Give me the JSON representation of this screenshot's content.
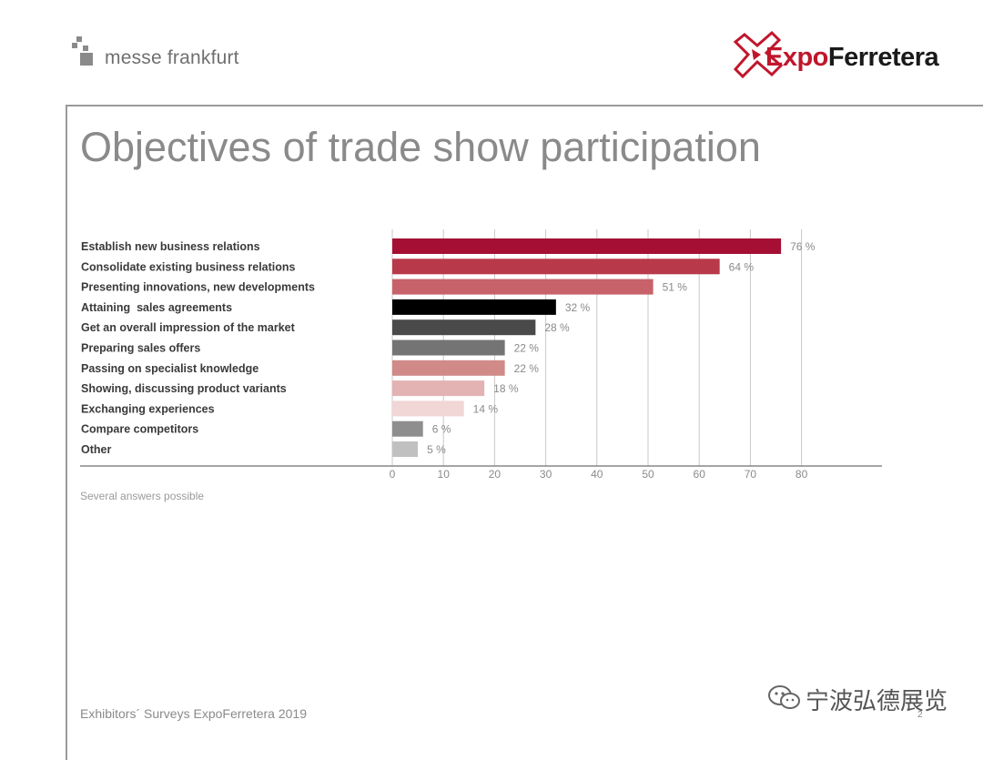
{
  "header": {
    "left_logo_text": "messe frankfurt",
    "right_logo_expo": "Expo",
    "right_logo_ferretera": "Ferretera"
  },
  "title": "Objectives of trade show participation",
  "chart_data": {
    "type": "bar",
    "orientation": "horizontal",
    "title": "",
    "xlabel": "",
    "ylabel": "",
    "xlim": [
      0,
      80
    ],
    "x_ticks": [
      0,
      10,
      20,
      30,
      40,
      50,
      60,
      70,
      80
    ],
    "grid": "vertical",
    "value_suffix": " %",
    "categories": [
      "Establish new business relations",
      "Consolidate existing business relations",
      "Presenting innovations, new developments",
      "Attaining  sales agreements",
      "Get an overall impression of the market",
      "Preparing sales offers",
      "Passing on specialist knowledge",
      "Showing, discussing product variants",
      "Exchanging experiences",
      "Compare competitors",
      "Other"
    ],
    "values": [
      76,
      64,
      51,
      32,
      28,
      22,
      22,
      18,
      14,
      6,
      5
    ],
    "colors": [
      "#a50f33",
      "#b8394a",
      "#c8626a",
      "#000000",
      "#4a4a4a",
      "#747474",
      "#d08a88",
      "#e3b2b2",
      "#f1d6d6",
      "#8e8e8e",
      "#c0c0c0"
    ]
  },
  "note": "Several answers possible",
  "footer": "Exhibitors´ Surveys ExpoFerretera 2019",
  "watermark_text": "宁波弘德展览",
  "page_number": "2"
}
